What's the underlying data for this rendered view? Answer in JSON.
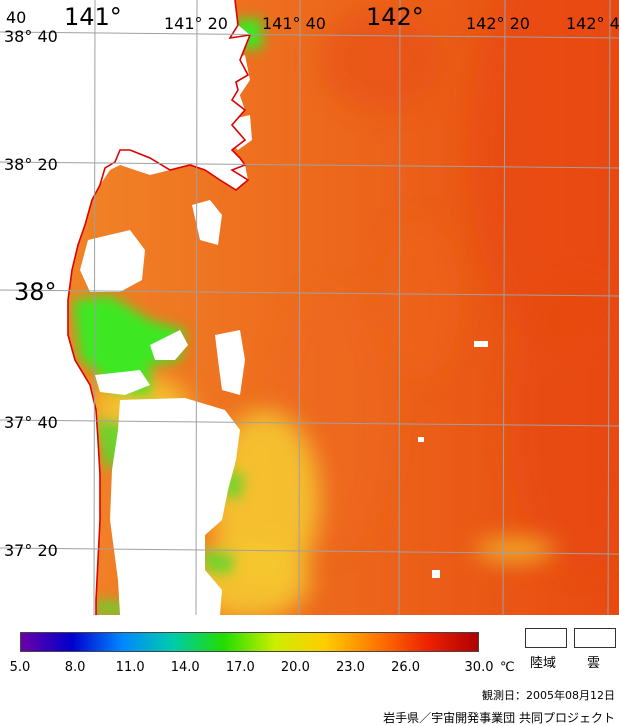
{
  "map": {
    "lon_labels_top": [
      {
        "text": "141°",
        "large": true
      },
      {
        "text": "141° 20",
        "large": false
      },
      {
        "text": "141° 40",
        "large": false
      },
      {
        "text": "142°",
        "large": true
      },
      {
        "text": "142° 20",
        "large": false
      },
      {
        "text": "142° 4",
        "large": false
      }
    ],
    "lat_labels_left": [
      {
        "text": "38° 40",
        "large": false
      },
      {
        "text": "38° 20",
        "large": false
      },
      {
        "text": "38°",
        "large": true
      },
      {
        "text": "37° 40",
        "large": false
      },
      {
        "text": "37° 20",
        "large": false
      }
    ],
    "corner_fragment": "40",
    "colors": {
      "sea_base": "#f06a1e",
      "sea_deep": "#e84a10",
      "warm_spot": "#f28a2a",
      "cool_yellow": "#f5c830",
      "cool_green": "#5cd82c",
      "bright_green": "#33ee22",
      "land_cloud": "#ffffff",
      "coastline": "#dd0000",
      "grid": "#a0a0a0"
    }
  },
  "legend": {
    "colorbar_stops": [
      "#6a00a8",
      "#0000cc",
      "#0088ff",
      "#00ccaa",
      "#22dd00",
      "#ccee00",
      "#ffcc00",
      "#ff7700",
      "#ee2200",
      "#b00000"
    ],
    "ticks": [
      "5.0",
      "8.0",
      "11.0",
      "14.0",
      "17.0",
      "20.0",
      "23.0",
      "26.0",
      "30.0"
    ],
    "tick_values": [
      5,
      8,
      11,
      14,
      17,
      20,
      23,
      26,
      30
    ],
    "range": [
      5,
      30
    ],
    "unit": "℃",
    "land_label": "陸域",
    "cloud_label": "雲"
  },
  "footer": {
    "observation_date": "観測日：2005年08月12日",
    "credit": "岩手県／宇宙開発事業団 共同プロジェクト"
  }
}
